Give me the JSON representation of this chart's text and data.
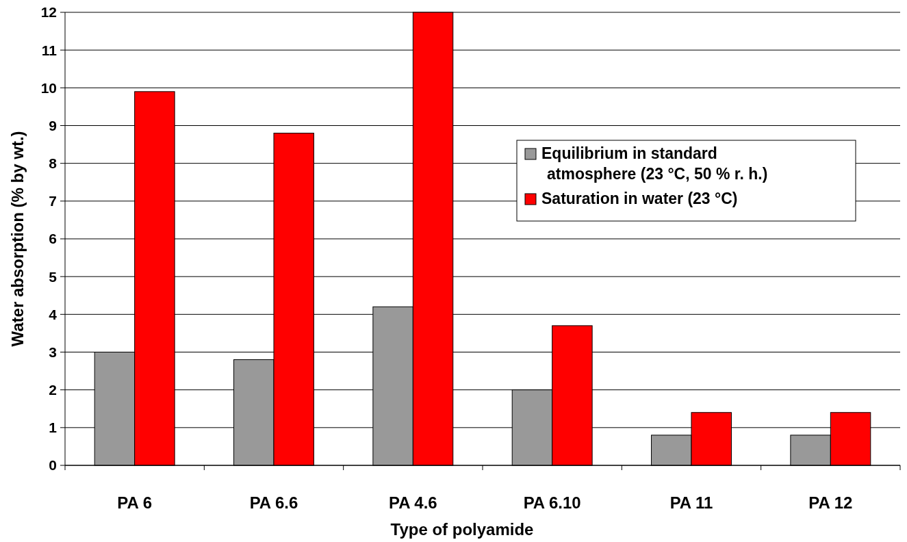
{
  "chart_data": {
    "type": "bar",
    "xlabel": "Type of polyamide",
    "ylabel": "Water absorption (% by wt.)",
    "categories": [
      "PA 6",
      "PA 6.6",
      "PA 4.6",
      "PA 6.10",
      "PA 11",
      "PA 12"
    ],
    "series": [
      {
        "name": "Equilibrium in standard atmosphere (23 °C, 50 % r. h.)",
        "color": "#999999",
        "values": [
          3.0,
          2.8,
          4.2,
          2.0,
          0.8,
          0.8
        ]
      },
      {
        "name": "Saturation in water (23 °C)",
        "color": "#ff0000",
        "values": [
          9.9,
          8.8,
          12.0,
          3.7,
          1.4,
          1.4
        ]
      }
    ],
    "ylim": [
      0,
      12
    ],
    "yticks": [
      0,
      1,
      2,
      3,
      4,
      5,
      6,
      7,
      8,
      9,
      10,
      11,
      12
    ],
    "grid": "y",
    "legend": "top right"
  }
}
